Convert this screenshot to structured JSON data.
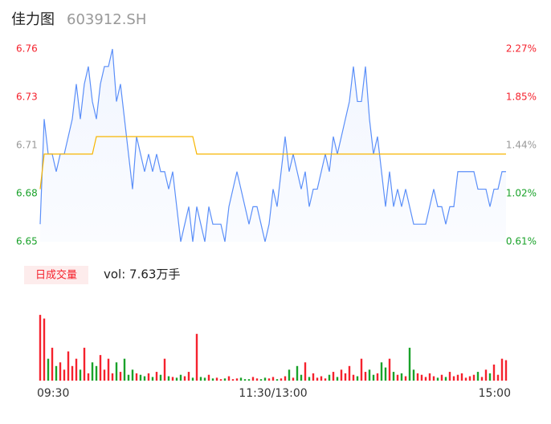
{
  "header": {
    "name": "佳力图",
    "code": "603912.SH"
  },
  "chart_data": {
    "type": "intraday",
    "price": {
      "color": "#5b8ff9",
      "values": [
        6.66,
        6.72,
        6.7,
        6.7,
        6.69,
        6.7,
        6.7,
        6.71,
        6.72,
        6.74,
        6.72,
        6.74,
        6.75,
        6.73,
        6.72,
        6.74,
        6.75,
        6.75,
        6.76,
        6.73,
        6.74,
        6.72,
        6.7,
        6.68,
        6.71,
        6.7,
        6.69,
        6.7,
        6.69,
        6.7,
        6.69,
        6.69,
        6.68,
        6.69,
        6.67,
        6.65,
        6.66,
        6.67,
        6.65,
        6.67,
        6.66,
        6.65,
        6.67,
        6.66,
        6.66,
        6.66,
        6.65,
        6.67,
        6.68,
        6.69,
        6.68,
        6.67,
        6.66,
        6.67,
        6.67,
        6.66,
        6.65,
        6.66,
        6.68,
        6.67,
        6.69,
        6.71,
        6.69,
        6.7,
        6.69,
        6.68,
        6.69,
        6.67,
        6.68,
        6.68,
        6.69,
        6.7,
        6.69,
        6.71,
        6.7,
        6.71,
        6.72,
        6.73,
        6.75,
        6.73,
        6.73,
        6.75,
        6.72,
        6.7,
        6.71,
        6.69,
        6.67,
        6.69,
        6.67,
        6.68,
        6.67,
        6.68,
        6.67,
        6.66,
        6.66,
        6.66,
        6.66,
        6.67,
        6.68,
        6.67,
        6.67,
        6.66,
        6.67,
        6.67,
        6.69,
        6.69,
        6.69,
        6.69,
        6.69,
        6.68,
        6.68,
        6.68,
        6.67,
        6.68,
        6.68,
        6.69,
        6.69
      ]
    },
    "avg": {
      "color": "#f7b500",
      "values": [
        6.68,
        6.7,
        6.7,
        6.7,
        6.7,
        6.7,
        6.7,
        6.7,
        6.7,
        6.7,
        6.7,
        6.7,
        6.7,
        6.7,
        6.71,
        6.71,
        6.71,
        6.71,
        6.71,
        6.71,
        6.71,
        6.71,
        6.71,
        6.71,
        6.71,
        6.71,
        6.71,
        6.71,
        6.71,
        6.71,
        6.71,
        6.71,
        6.71,
        6.71,
        6.71,
        6.71,
        6.71,
        6.71,
        6.71,
        6.7,
        6.7,
        6.7,
        6.7,
        6.7,
        6.7,
        6.7,
        6.7,
        6.7,
        6.7,
        6.7,
        6.7,
        6.7,
        6.7,
        6.7,
        6.7,
        6.7,
        6.7,
        6.7,
        6.7,
        6.7,
        6.7,
        6.7,
        6.7,
        6.7,
        6.7,
        6.7,
        6.7,
        6.7,
        6.7,
        6.7,
        6.7,
        6.7,
        6.7,
        6.7,
        6.7,
        6.7,
        6.7,
        6.7,
        6.7,
        6.7,
        6.7,
        6.7,
        6.7,
        6.7,
        6.7,
        6.7,
        6.7,
        6.7,
        6.7,
        6.7,
        6.7,
        6.7,
        6.7,
        6.7,
        6.7,
        6.7,
        6.7,
        6.7,
        6.7,
        6.7,
        6.7,
        6.7,
        6.7,
        6.7,
        6.7,
        6.7,
        6.7,
        6.7,
        6.7,
        6.7,
        6.7,
        6.7,
        6.7,
        6.7,
        6.7,
        6.7,
        6.7
      ]
    },
    "xlim": [
      0,
      116
    ],
    "xticks": [
      {
        "value": 0,
        "label": "09:30"
      },
      {
        "value": 58,
        "label": "11:30/13:00"
      },
      {
        "value": 116,
        "label": "15:00"
      }
    ],
    "ylim": [
      6.65,
      6.76
    ],
    "yticks": [
      {
        "value": 6.76,
        "label": "6.76"
      },
      {
        "value": 6.7325,
        "label": "6.73"
      },
      {
        "value": 6.705,
        "label": "6.71"
      },
      {
        "value": 6.6775,
        "label": "6.68"
      },
      {
        "value": 6.65,
        "label": "6.65"
      }
    ],
    "y2lim": [
      0.61,
      2.27
    ],
    "y2ticks": [
      {
        "value": 2.27,
        "label": "2.27%"
      },
      {
        "value": 1.855,
        "label": "1.85%"
      },
      {
        "value": 1.44,
        "label": "1.44%"
      },
      {
        "value": 1.025,
        "label": "1.02%"
      },
      {
        "value": 0.61,
        "label": "0.61%"
      }
    ],
    "up_color": "#f5222d",
    "down_color": "#1aa22a",
    "flat_color": "#999999",
    "volume": {
      "title": "日成交量",
      "summary": "vol: 7.63万手",
      "ylim": [
        0,
        100
      ],
      "values": [
        90,
        85,
        30,
        45,
        20,
        25,
        15,
        40,
        20,
        30,
        15,
        45,
        10,
        25,
        20,
        35,
        15,
        30,
        10,
        25,
        12,
        30,
        8,
        15,
        10,
        8,
        6,
        10,
        5,
        12,
        8,
        30,
        6,
        5,
        4,
        8,
        6,
        12,
        4,
        64,
        5,
        4,
        8,
        3,
        4,
        2,
        3,
        6,
        2,
        3,
        4,
        2,
        2,
        5,
        3,
        2,
        4,
        3,
        5,
        2,
        3,
        6,
        15,
        4,
        20,
        8,
        25,
        5,
        10,
        4,
        6,
        3,
        8,
        12,
        5,
        15,
        10,
        20,
        8,
        6,
        30,
        12,
        15,
        8,
        10,
        25,
        18,
        30,
        12,
        8,
        10,
        6,
        45,
        15,
        10,
        8,
        5,
        10,
        6,
        4,
        8,
        5,
        12,
        6,
        8,
        10,
        4,
        6,
        8,
        12,
        5,
        15,
        10,
        22,
        8,
        30,
        28
      ]
    }
  }
}
